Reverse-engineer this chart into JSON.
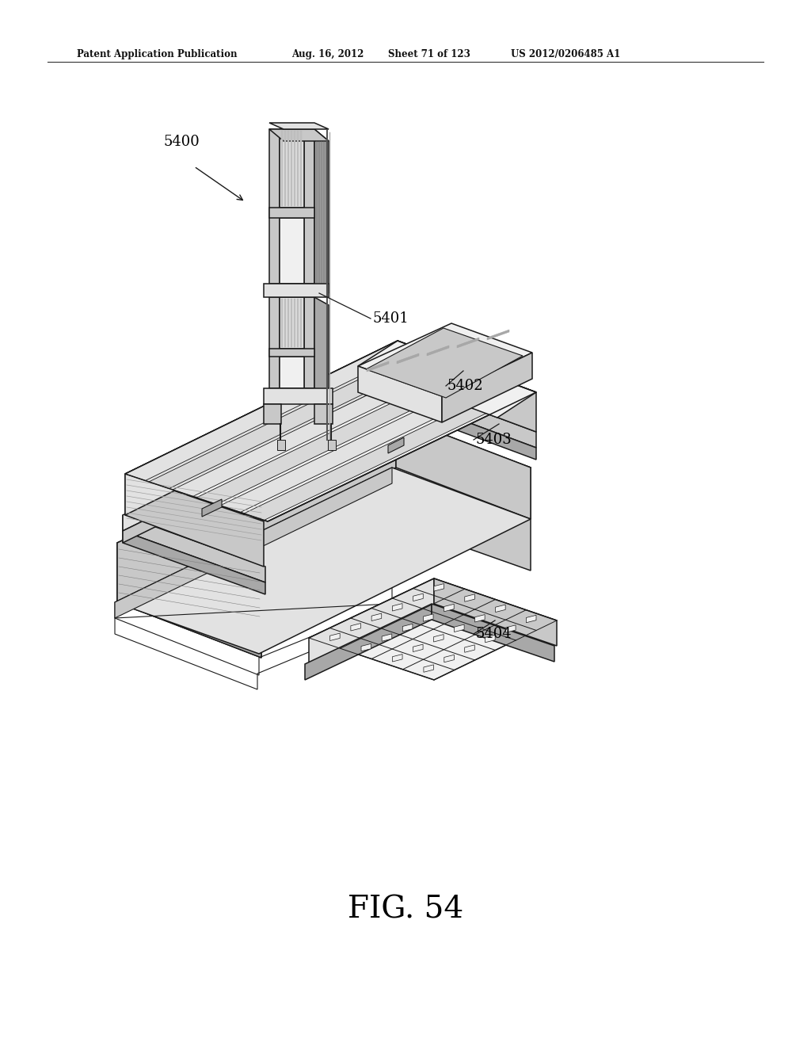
{
  "bg_color": "#ffffff",
  "header_left": "Patent Application Publication",
  "header_mid1": "Aug. 16, 2012",
  "header_mid2": "Sheet 71 of 123",
  "header_right": "US 2012/0206485 A1",
  "fig_label": "FIG. 54",
  "line_color": "#1a1a1a",
  "lw_main": 1.1,
  "lw_thin": 0.6,
  "fc_white": "#ffffff",
  "fc_vlight": "#f0f0f0",
  "fc_light": "#e2e2e2",
  "fc_mid": "#c8c8c8",
  "fc_dark": "#a8a8a8",
  "fc_xdark": "#888888",
  "fc_stripe": "#b0b0b0"
}
